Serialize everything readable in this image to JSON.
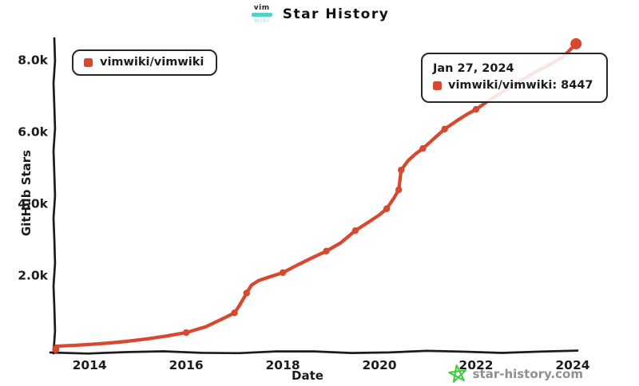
{
  "header": {
    "title": "Star History",
    "logo_top": "vim",
    "logo_bottom": "wiki"
  },
  "legend": {
    "label": "vimwiki/vimwiki"
  },
  "tooltip": {
    "date": "Jan 27, 2024",
    "series_text": "vimwiki/vimwiki: 8447"
  },
  "watermark": {
    "label": "star-history.com"
  },
  "colors": {
    "series": "#d6492f",
    "axis": "#1c1c1c",
    "watermark_green": "#3fcc3f",
    "watermark_text": "#8f8f8f",
    "logo_teal": "#52d3c4"
  },
  "chart_data": {
    "type": "line",
    "title": "Star History",
    "xlabel": "Date",
    "ylabel": "GitHub Stars",
    "xlim": [
      2013.27,
      2024.1
    ],
    "ylim": [
      0,
      8600
    ],
    "x_ticks": [
      2014,
      2016,
      2018,
      2020,
      2022,
      2024
    ],
    "y_ticks": [
      {
        "value": 2000,
        "label": "2.0k"
      },
      {
        "value": 4000,
        "label": "4.0k"
      },
      {
        "value": 6000,
        "label": "6.0k"
      },
      {
        "value": 8000,
        "label": "8.0k"
      }
    ],
    "grid": false,
    "legend_position": "top-left",
    "series": [
      {
        "name": "vimwiki/vimwiki",
        "color": "#d6492f",
        "points": [
          [
            2013.3,
            20
          ],
          [
            2013.7,
            45
          ],
          [
            2014.0,
            70
          ],
          [
            2014.4,
            110
          ],
          [
            2014.8,
            160
          ],
          [
            2015.2,
            225
          ],
          [
            2015.6,
            305
          ],
          [
            2016.0,
            400
          ],
          [
            2016.4,
            560
          ],
          [
            2016.7,
            750
          ],
          [
            2017.0,
            950
          ],
          [
            2017.1,
            1150
          ],
          [
            2017.2,
            1380
          ],
          [
            2017.25,
            1500
          ],
          [
            2017.35,
            1720
          ],
          [
            2017.5,
            1850
          ],
          [
            2017.7,
            1940
          ],
          [
            2018.0,
            2070
          ],
          [
            2018.3,
            2280
          ],
          [
            2018.6,
            2480
          ],
          [
            2018.9,
            2670
          ],
          [
            2019.2,
            2900
          ],
          [
            2019.5,
            3240
          ],
          [
            2019.8,
            3500
          ],
          [
            2020.0,
            3680
          ],
          [
            2020.15,
            3850
          ],
          [
            2020.3,
            4150
          ],
          [
            2020.4,
            4380
          ],
          [
            2020.45,
            4930
          ],
          [
            2020.6,
            5200
          ],
          [
            2020.75,
            5380
          ],
          [
            2020.9,
            5530
          ],
          [
            2021.1,
            5770
          ],
          [
            2021.35,
            6070
          ],
          [
            2021.6,
            6300
          ],
          [
            2021.8,
            6470
          ],
          [
            2022.0,
            6620
          ],
          [
            2022.3,
            6900
          ],
          [
            2022.6,
            7150
          ],
          [
            2022.9,
            7400
          ],
          [
            2023.2,
            7640
          ],
          [
            2023.5,
            7850
          ],
          [
            2023.8,
            8080
          ],
          [
            2024.07,
            8447
          ]
        ],
        "markers": [
          [
            2016.0,
            400
          ],
          [
            2017.0,
            950
          ],
          [
            2017.25,
            1500
          ],
          [
            2018.0,
            2070
          ],
          [
            2018.9,
            2670
          ],
          [
            2019.5,
            3240
          ],
          [
            2020.15,
            3850
          ],
          [
            2020.4,
            4380
          ],
          [
            2020.45,
            4930
          ],
          [
            2020.9,
            5530
          ],
          [
            2021.35,
            6070
          ],
          [
            2022.0,
            6620
          ]
        ],
        "start_point": [
          2013.3,
          20
        ],
        "end_point": [
          2024.07,
          8447
        ],
        "end_value_label": "8447",
        "end_date_label": "Jan 27, 2024"
      }
    ]
  }
}
